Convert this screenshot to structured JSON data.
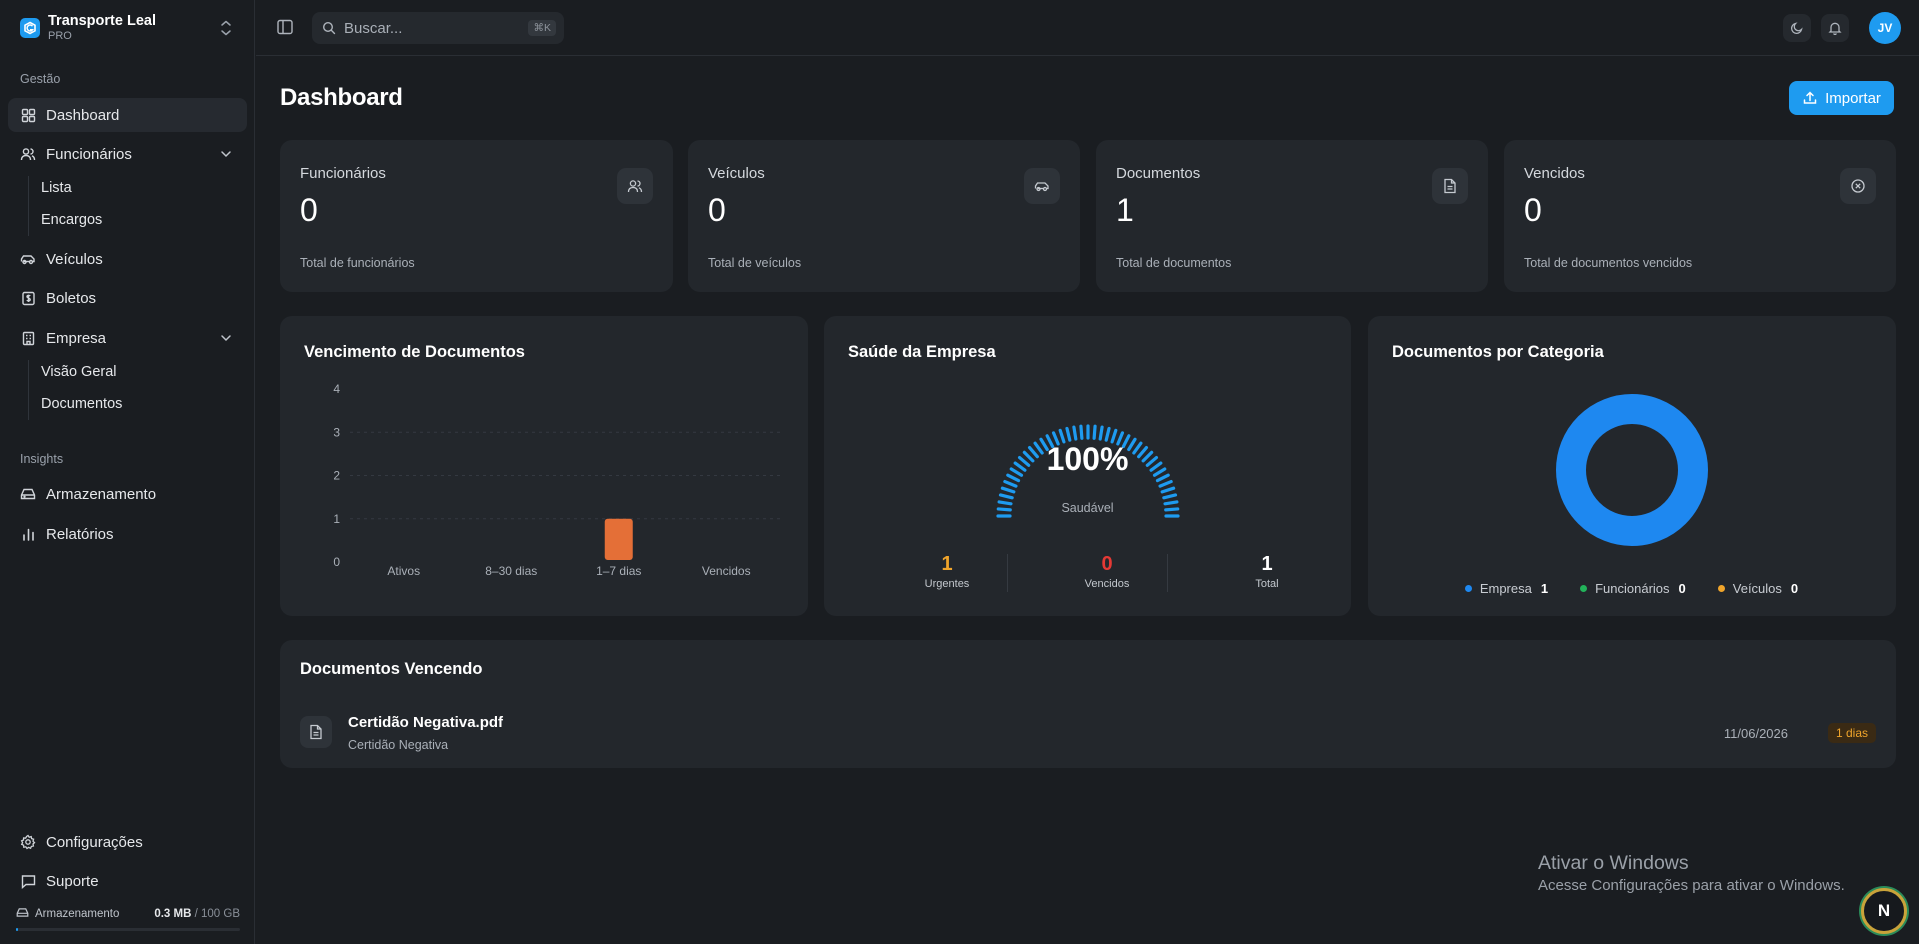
{
  "brand": {
    "name": "Transporte Leal",
    "plan": "PRO"
  },
  "sidebar": {
    "group_gestao": "Gestão",
    "dashboard": "Dashboard",
    "funcionarios": "Funcionários",
    "funcionarios_sub": [
      "Lista",
      "Encargos"
    ],
    "veiculos": "Veículos",
    "boletos": "Boletos",
    "empresa": "Empresa",
    "empresa_sub": [
      "Visão Geral",
      "Documentos"
    ],
    "group_insights": "Insights",
    "armazenamento": "Armazenamento",
    "relatorios": "Relatórios",
    "configuracoes": "Configurações",
    "suporte": "Suporte",
    "storage": {
      "label": "Armazenamento",
      "used": "0.3 MB",
      "max": "/ 100 GB",
      "fraction": 0.003
    }
  },
  "topbar": {
    "search_placeholder": "Buscar...",
    "shortcut": "⌘K",
    "avatar_initials": "JV"
  },
  "page": {
    "title": "Dashboard",
    "import_label": "Importar"
  },
  "stats": [
    {
      "title": "Funcionários",
      "value": "0",
      "sub": "Total de funcionários",
      "icon": "users-icon"
    },
    {
      "title": "Veículos",
      "value": "0",
      "sub": "Total de veículos",
      "icon": "car-icon"
    },
    {
      "title": "Documentos",
      "value": "1",
      "sub": "Total de documentos",
      "icon": "file-icon"
    },
    {
      "title": "Vencidos",
      "value": "0",
      "sub": "Total de documentos vencidos",
      "icon": "x-circle-icon"
    }
  ],
  "vencimento": {
    "title": "Vencimento de Documentos",
    "chart_data": {
      "type": "bar",
      "categories": [
        "Ativos",
        "8–30 dias",
        "1–7 dias",
        "Vencidos"
      ],
      "values": [
        0,
        0,
        1,
        0
      ],
      "yticks": [
        0,
        1,
        2,
        3,
        4
      ],
      "ylim": [
        0,
        4
      ],
      "bar_color": "#e46f37"
    }
  },
  "saude": {
    "title": "Saúde da Empresa",
    "percent": "100%",
    "status": "Saudável",
    "level": 1.0,
    "stats": [
      {
        "value": "1",
        "label": "Urgentes",
        "color": "#f0a52b"
      },
      {
        "value": "0",
        "label": "Vencidos",
        "color": "#e53935"
      },
      {
        "value": "1",
        "label": "Total",
        "color": "#ffffff"
      }
    ]
  },
  "categoria": {
    "title": "Documentos por Categoria",
    "chart_data": {
      "type": "pie",
      "categories": [
        "Empresa",
        "Funcionários",
        "Veículos"
      ],
      "values": [
        1,
        0,
        0
      ],
      "colors": [
        "#1e88f0",
        "#22b35a",
        "#f0a52b"
      ]
    },
    "legend": [
      {
        "name": "Empresa",
        "value": "1",
        "color": "#1e88f0"
      },
      {
        "name": "Funcionários",
        "value": "0",
        "color": "#22b35a"
      },
      {
        "name": "Veículos",
        "value": "0",
        "color": "#f0a52b"
      }
    ]
  },
  "vencendo": {
    "title": "Documentos Vencendo",
    "items": [
      {
        "name": "Certidão Negativa.pdf",
        "category": "Certidão Negativa",
        "date": "11/06/2026",
        "badge": "1 dias"
      }
    ]
  },
  "watermark": {
    "line1": "Ativar o Windows",
    "line2": "Acesse Configurações para ativar o Windows."
  },
  "fab_letter": "N"
}
